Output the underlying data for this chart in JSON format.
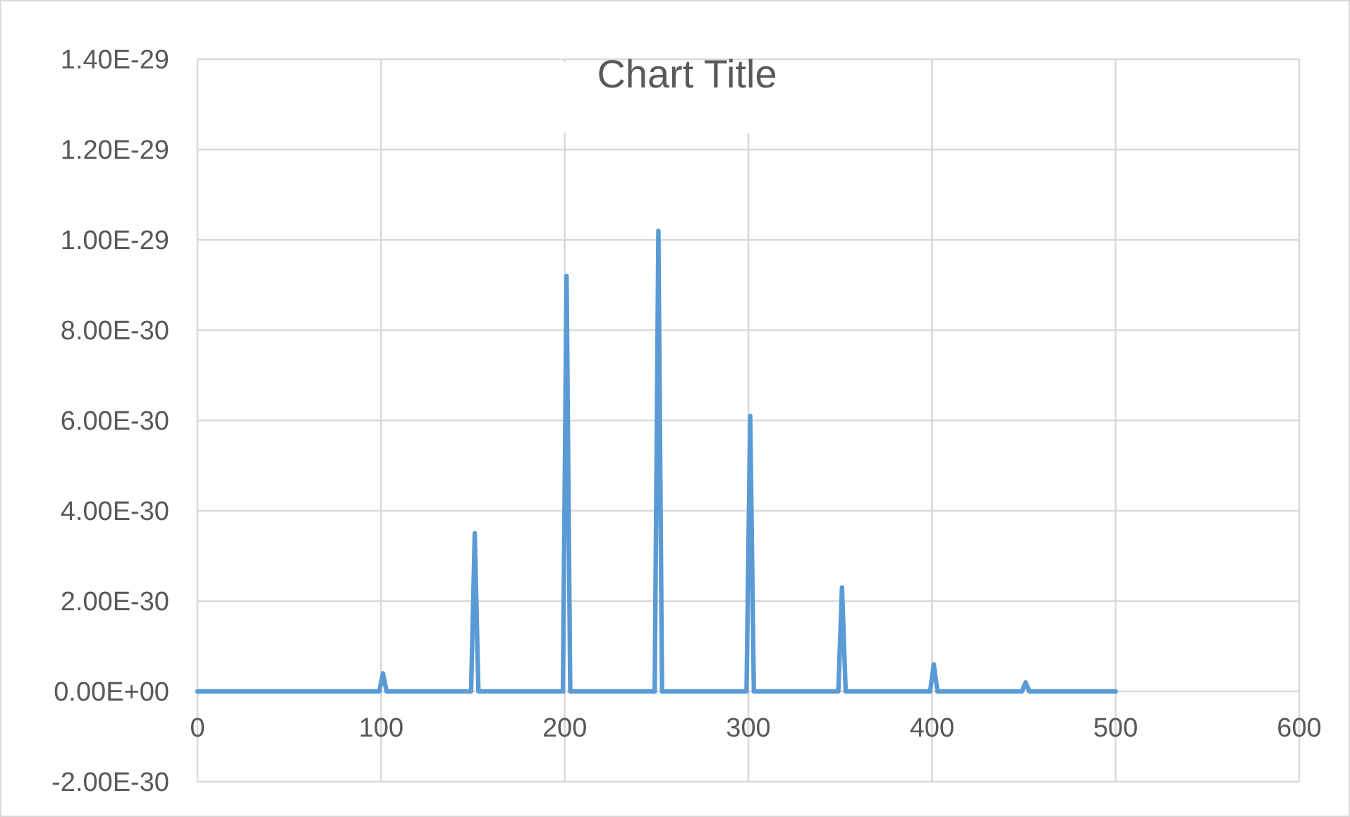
{
  "chart_data": {
    "type": "line",
    "title": "Chart Title",
    "series": [
      {
        "color": "#5b9bd5",
        "x": [
          0,
          99,
          101,
          103,
          149,
          151,
          153,
          199,
          201,
          203,
          249,
          251,
          253,
          299,
          301,
          303,
          349,
          351,
          353,
          399,
          401,
          403,
          449,
          451,
          453,
          500
        ],
        "values": [
          0,
          0,
          4e-31,
          0,
          0,
          3.5e-30,
          0,
          0,
          9.2e-30,
          0,
          0,
          1.02e-29,
          0,
          0,
          6.1e-30,
          0,
          0,
          2.3e-30,
          0,
          0,
          6e-31,
          0,
          0,
          2e-31,
          0,
          0
        ]
      }
    ],
    "xlim": [
      0,
      600
    ],
    "xticks": [
      0,
      100,
      200,
      300,
      400,
      500,
      600
    ],
    "ylim": [
      -2e-30,
      1.4e-29
    ],
    "yticks": [
      {
        "value": -2e-30,
        "label": "-2.00E-30"
      },
      {
        "value": 0,
        "label": "0.00E+00"
      },
      {
        "value": 2e-30,
        "label": "2.00E-30"
      },
      {
        "value": 4e-30,
        "label": "4.00E-30"
      },
      {
        "value": 6e-30,
        "label": "6.00E-30"
      },
      {
        "value": 8e-30,
        "label": "8.00E-30"
      },
      {
        "value": 1e-29,
        "label": "1.00E-29"
      },
      {
        "value": 1.2e-29,
        "label": "1.20E-29"
      },
      {
        "value": 1.4e-29,
        "label": "1.40E-29"
      }
    ],
    "grid": true,
    "marker": "none",
    "line_style": "solid"
  }
}
